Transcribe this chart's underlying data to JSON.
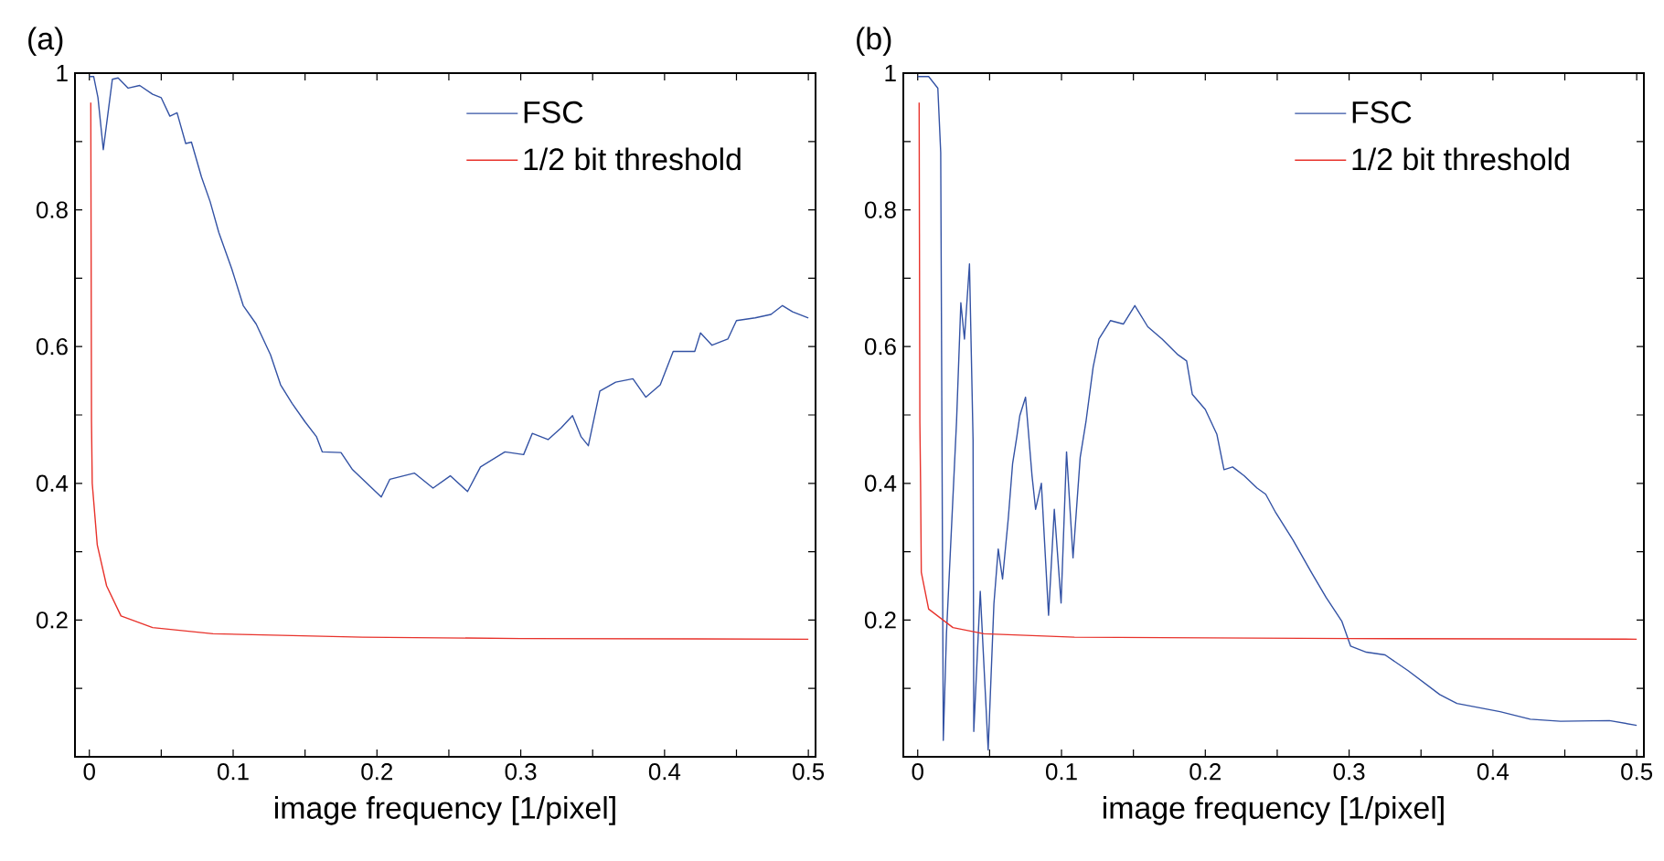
{
  "chart_data": [
    {
      "type": "line",
      "title": "(a)",
      "xlabel": "image frequency [1/pixel]",
      "xlim": [
        -0.01,
        0.505
      ],
      "ylim": [
        0,
        1
      ],
      "xticks": [
        0,
        {
          "value": 0.05,
          "label": null
        },
        0.1,
        {
          "value": 0.15,
          "label": null
        },
        0.2,
        {
          "value": 0.25,
          "label": null
        },
        0.3,
        {
          "value": 0.35,
          "label": null
        },
        0.4,
        {
          "value": 0.45,
          "label": null
        },
        0.5
      ],
      "yticks": [
        {
          "value": 0.1,
          "label": null
        },
        0.2,
        {
          "value": 0.3,
          "label": null
        },
        0.4,
        {
          "value": 0.5,
          "label": null
        },
        0.6,
        {
          "value": 0.7,
          "label": null
        },
        0.8,
        {
          "value": 0.9,
          "label": null
        },
        1
      ],
      "legend": "top right",
      "grid": false,
      "series": [
        {
          "name": "FSC",
          "color": "#3352a4",
          "x": [
            0,
            0.003,
            0.006,
            0.0097,
            0.013,
            0.016,
            0.02,
            0.027,
            0.035,
            0.044,
            0.05,
            0.056,
            0.061,
            0.067,
            0.071,
            0.078,
            0.084,
            0.09,
            0.099,
            0.107,
            0.116,
            0.126,
            0.133,
            0.141,
            0.15,
            0.158,
            0.162,
            0.175,
            0.183,
            0.192,
            0.203,
            0.209,
            0.226,
            0.239,
            0.251,
            0.263,
            0.272,
            0.289,
            0.302,
            0.308,
            0.319,
            0.328,
            0.336,
            0.342,
            0.347,
            0.355,
            0.366,
            0.378,
            0.387,
            0.397,
            0.406,
            0.421,
            0.425,
            0.433,
            0.444,
            0.45,
            0.463,
            0.474,
            0.482,
            0.489,
            0.5
          ],
          "values": [
            0.995,
            0.995,
            0.964,
            0.888,
            0.942,
            0.991,
            0.993,
            0.978,
            0.982,
            0.969,
            0.964,
            0.937,
            0.942,
            0.897,
            0.899,
            0.848,
            0.812,
            0.767,
            0.714,
            0.66,
            0.633,
            0.588,
            0.544,
            0.517,
            0.49,
            0.468,
            0.446,
            0.445,
            0.42,
            0.402,
            0.38,
            0.406,
            0.415,
            0.393,
            0.411,
            0.388,
            0.424,
            0.446,
            0.442,
            0.473,
            0.464,
            0.481,
            0.499,
            0.468,
            0.455,
            0.535,
            0.548,
            0.553,
            0.526,
            0.544,
            0.593,
            0.593,
            0.62,
            0.602,
            0.611,
            0.638,
            0.642,
            0.647,
            0.66,
            0.651,
            0.642
          ]
        },
        {
          "name": "1/2 bit threshold",
          "color": "#e8322b",
          "x": [
            0.001,
            0.0015,
            0.002,
            0.0055,
            0.012,
            0.022,
            0.044,
            0.086,
            0.19,
            0.3,
            0.5
          ],
          "values": [
            0.957,
            0.49,
            0.4,
            0.31,
            0.25,
            0.206,
            0.189,
            0.18,
            0.175,
            0.173,
            0.172
          ]
        }
      ]
    },
    {
      "type": "line",
      "title": "(b)",
      "xlabel": "image frequency [1/pixel]",
      "xlim": [
        -0.01,
        0.505
      ],
      "ylim": [
        0,
        1
      ],
      "xticks": [
        0,
        {
          "value": 0.05,
          "label": null
        },
        0.1,
        {
          "value": 0.15,
          "label": null
        },
        0.2,
        {
          "value": 0.25,
          "label": null
        },
        0.3,
        {
          "value": 0.35,
          "label": null
        },
        0.4,
        {
          "value": 0.45,
          "label": null
        },
        0.5
      ],
      "yticks": [
        {
          "value": 0.1,
          "label": null
        },
        0.2,
        {
          "value": 0.3,
          "label": null
        },
        0.4,
        {
          "value": 0.5,
          "label": null
        },
        0.6,
        {
          "value": 0.7,
          "label": null
        },
        0.8,
        {
          "value": 0.9,
          "label": null
        },
        1
      ],
      "legend": "top right",
      "grid": false,
      "series": [
        {
          "name": "FSC",
          "color": "#3352a4",
          "x": [
            0,
            0.0076,
            0.014,
            0.016,
            0.0178,
            0.02,
            0.027,
            0.03,
            0.0325,
            0.036,
            0.0385,
            0.039,
            0.0435,
            0.049,
            0.053,
            0.056,
            0.059,
            0.063,
            0.066,
            0.069,
            0.071,
            0.075,
            0.0795,
            0.082,
            0.086,
            0.091,
            0.095,
            0.0997,
            0.1035,
            0.108,
            0.113,
            0.117,
            0.122,
            0.126,
            0.134,
            0.143,
            0.151,
            0.16,
            0.17,
            0.181,
            0.187,
            0.191,
            0.2,
            0.208,
            0.213,
            0.219,
            0.227,
            0.236,
            0.242,
            0.249,
            0.261,
            0.274,
            0.284,
            0.295,
            0.301,
            0.312,
            0.325,
            0.341,
            0.363,
            0.375,
            0.405,
            0.426,
            0.447,
            0.481,
            0.5
          ],
          "values": [
            0.995,
            0.995,
            0.978,
            0.884,
            0.024,
            0.18,
            0.49,
            0.664,
            0.611,
            0.721,
            0.463,
            0.037,
            0.242,
            0.01,
            0.224,
            0.304,
            0.26,
            0.349,
            0.429,
            0.469,
            0.499,
            0.526,
            0.411,
            0.362,
            0.4,
            0.207,
            0.362,
            0.225,
            0.446,
            0.291,
            0.438,
            0.49,
            0.57,
            0.611,
            0.638,
            0.633,
            0.66,
            0.629,
            0.611,
            0.588,
            0.579,
            0.53,
            0.508,
            0.472,
            0.42,
            0.424,
            0.411,
            0.393,
            0.384,
            0.357,
            0.317,
            0.269,
            0.233,
            0.198,
            0.162,
            0.153,
            0.149,
            0.126,
            0.091,
            0.078,
            0.066,
            0.055,
            0.052,
            0.053,
            0.046
          ]
        },
        {
          "name": "1/2 bit threshold",
          "color": "#e8322b",
          "x": [
            0.001,
            0.0015,
            0.002,
            0.0025,
            0.0076,
            0.0245,
            0.046,
            0.109,
            0.3,
            0.5
          ],
          "values": [
            0.957,
            0.49,
            0.4,
            0.27,
            0.216,
            0.189,
            0.18,
            0.175,
            0.173,
            0.172
          ]
        }
      ]
    }
  ]
}
